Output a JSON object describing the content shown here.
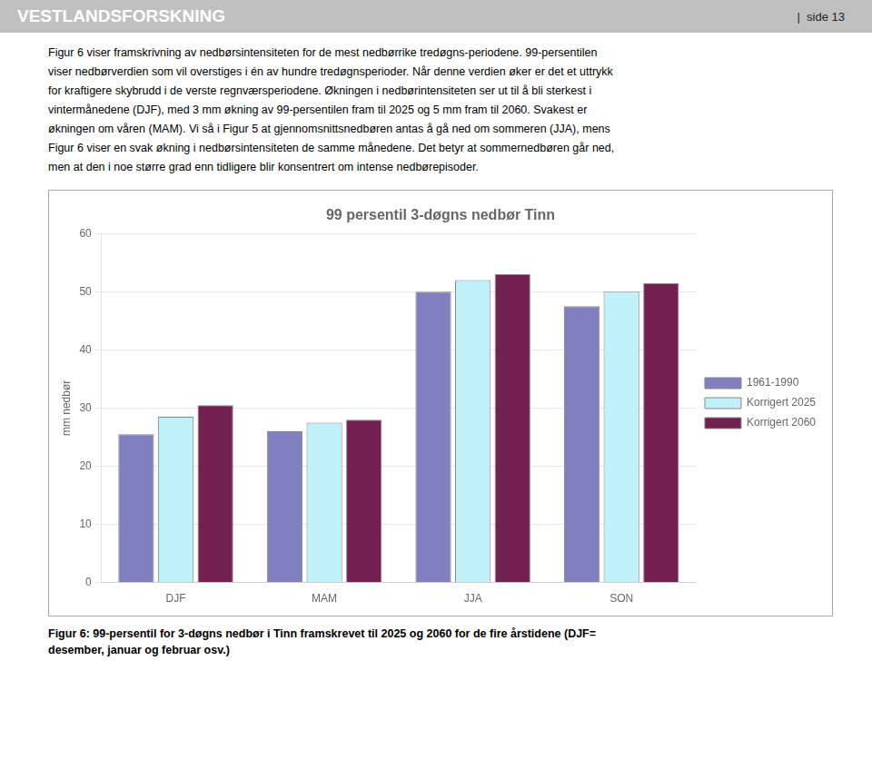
{
  "chart_data": {
    "type": "bar",
    "title": "99 persentil 3-døgns nedbør Tinn",
    "ylabel": "mm nedbør",
    "categories": [
      "DJF",
      "MAM",
      "JJA",
      "SON"
    ],
    "series": [
      {
        "name": "1961-1990",
        "color": "#8080c0",
        "values": [
          25.5,
          26.0,
          50.0,
          47.5
        ]
      },
      {
        "name": "Korrigert 2025",
        "color": "#c0f0f8",
        "values": [
          28.5,
          27.5,
          52.0,
          50.0
        ]
      },
      {
        "name": "Korrigert 2060",
        "color": "#722050",
        "values": [
          30.5,
          28.0,
          53.0,
          51.5
        ]
      }
    ],
    "ylim": [
      0,
      60
    ],
    "yticks": [
      0,
      10,
      20,
      30,
      40,
      50,
      60
    ],
    "grid": true,
    "legend": "right",
    "annotations": [
      "VESTLANDSFORSKNING",
      "|  side 13",
      "Figur 6 viser framskrivning av nedbørsintensiteten for de mest nedbørrike tredøgns-periodene. 99-persentilen",
      "viser nedbørverdien som vil overstiges i én av hundre tredøgnsperioder. Når denne verdien øker er det et uttrykk",
      "for kraftigere skybrudd i de verste regnværsperiodene. Økningen i nedbørintensiteten ser ut til å bli sterkest i",
      "vintermånedene (DJF), med 3 mm økning av 99-persentilen fram til 2025 og 5 mm fram til 2060. Svakest er",
      "økningen om våren (MAM). Vi så i Figur 5 at gjennomsnittsnedbøren antas å gå ned om sommeren (JJA), mens",
      "Figur 6 viser en svak økning i nedbørsintensiteten de samme månedene. Det betyr at sommernedbøren går ned,",
      "men at den i noe større grad enn tidligere blir konsentrert om intense nedbørepisoder.",
      "Figur 6: 99-persentil for 3-døgns nedbør i Tinn framskrevet til 2025 og 2060 for de fire årstidene (DJF=\ndesember, januar og februar osv.)"
    ]
  }
}
